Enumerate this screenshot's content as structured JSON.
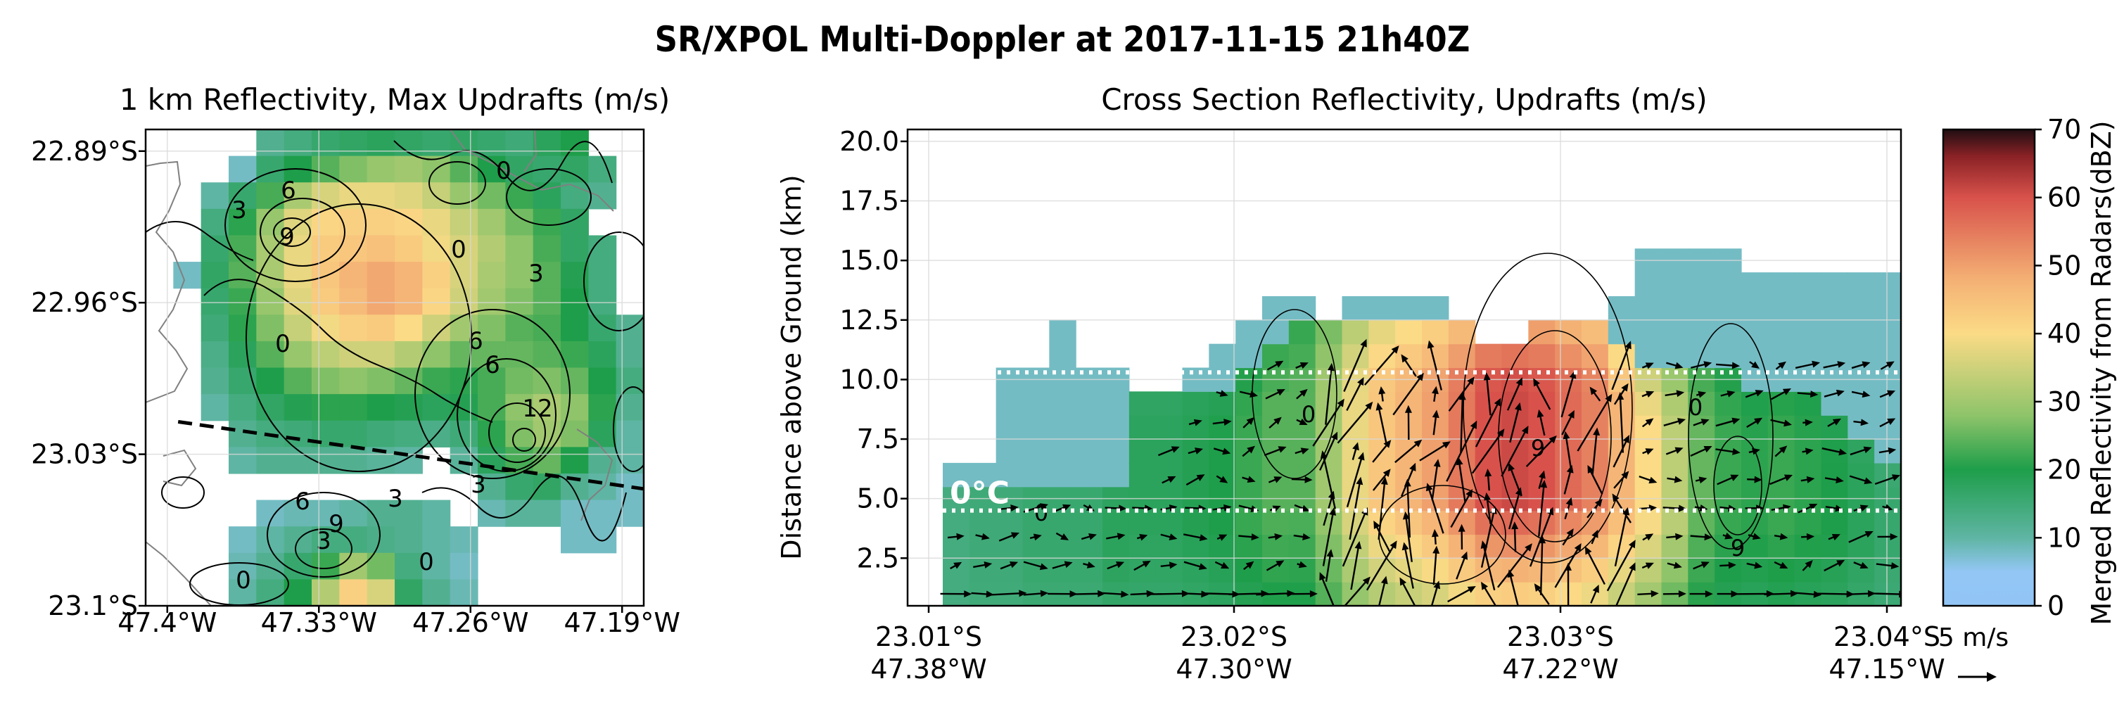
{
  "colors": {
    "cmap_stops": [
      "#92c5f6",
      "#93c6f5",
      "#5fb5a3",
      "#1e9e4a",
      "#8fc46a",
      "#fbdb86",
      "#f4b074",
      "#d8524b",
      "#8b2226",
      "#200e12"
    ],
    "cmap_stop_values": [
      0,
      5,
      10,
      20,
      28,
      40,
      48,
      60,
      66,
      70
    ],
    "contour": "#000000",
    "coast": "#808080",
    "grid": "#d9d9d9",
    "isotherm": "#ffffff",
    "section_line": "#000000"
  },
  "chart_data": [
    {
      "type": "heatmap",
      "title": "1 km Reflectivity, Max Updrafts (m/s)",
      "suptitle": "SR/XPOL Multi-Doppler at 2017-11-15 21h40Z",
      "xticks": [
        "47.4°W",
        "47.33°W",
        "47.26°W",
        "47.19°W"
      ],
      "yticks": [
        "22.89°S",
        "22.96°S",
        "23.03°S",
        "23.1°S"
      ],
      "xlim": [
        -47.41,
        -47.18
      ],
      "ylim": [
        -23.1,
        -22.88
      ],
      "grid": true,
      "reflectivity_units": "dBZ",
      "reflectivity_grid": [
        [
          0,
          0,
          0,
          0,
          12,
          14,
          16,
          17,
          18,
          17,
          16,
          17,
          16,
          15,
          18,
          20,
          0,
          0
        ],
        [
          0,
          0,
          0,
          8,
          16,
          20,
          24,
          27,
          29,
          30,
          28,
          24,
          20,
          17,
          16,
          17,
          14,
          0
        ],
        [
          0,
          0,
          10,
          16,
          23,
          31,
          36,
          38,
          38,
          37,
          34,
          29,
          26,
          22,
          18,
          14,
          12,
          0
        ],
        [
          0,
          0,
          14,
          21,
          29,
          37,
          41,
          42,
          42,
          41,
          38,
          34,
          30,
          26,
          22,
          17,
          0,
          0
        ],
        [
          0,
          0,
          16,
          23,
          31,
          38,
          43,
          44,
          45,
          43,
          39,
          36,
          32,
          28,
          23,
          17,
          14,
          0
        ],
        [
          0,
          8,
          17,
          24,
          31,
          38,
          44,
          47,
          49,
          47,
          42,
          36,
          31,
          28,
          24,
          19,
          14,
          0
        ],
        [
          0,
          0,
          16,
          22,
          29,
          37,
          43,
          46,
          49,
          47,
          41,
          35,
          30,
          27,
          24,
          20,
          14,
          0
        ],
        [
          0,
          0,
          15,
          21,
          27,
          34,
          39,
          42,
          43,
          40,
          35,
          30,
          27,
          24,
          23,
          20,
          16,
          12
        ],
        [
          0,
          0,
          13,
          18,
          24,
          29,
          33,
          35,
          35,
          32,
          28,
          25,
          25,
          25,
          24,
          22,
          18,
          12
        ],
        [
          0,
          0,
          12,
          16,
          20,
          24,
          27,
          28,
          27,
          25,
          22,
          21,
          23,
          26,
          27,
          25,
          20,
          14
        ],
        [
          0,
          0,
          10,
          14,
          17,
          19,
          21,
          21,
          20,
          19,
          18,
          19,
          23,
          28,
          31,
          28,
          21,
          12
        ],
        [
          0,
          0,
          0,
          12,
          14,
          15,
          16,
          16,
          15,
          14,
          13,
          15,
          21,
          27,
          30,
          27,
          18,
          10
        ],
        [
          0,
          0,
          0,
          10,
          12,
          12,
          12,
          12,
          11,
          10,
          0,
          11,
          18,
          23,
          25,
          20,
          12,
          10
        ],
        [
          0,
          0,
          0,
          0,
          0,
          0,
          0,
          0,
          0,
          0,
          0,
          0,
          12,
          16,
          17,
          12,
          10,
          8
        ],
        [
          0,
          0,
          0,
          0,
          8,
          9,
          9,
          10,
          12,
          12,
          10,
          0,
          9,
          11,
          11,
          8,
          8,
          8
        ],
        [
          0,
          0,
          0,
          8,
          10,
          12,
          14,
          14,
          13,
          12,
          10,
          9,
          0,
          0,
          0,
          8,
          8,
          0
        ],
        [
          0,
          0,
          0,
          9,
          12,
          16,
          22,
          30,
          26,
          14,
          10,
          8,
          0,
          0,
          0,
          0,
          0,
          0
        ],
        [
          0,
          0,
          0,
          10,
          14,
          20,
          32,
          42,
          36,
          17,
          12,
          9,
          0,
          0,
          0,
          0,
          0,
          0
        ]
      ],
      "contour_labels": [
        "0",
        "3",
        "6",
        "9",
        "12"
      ],
      "cross_section_line": {
        "start": [
          -47.395,
          -23.015
        ],
        "end": [
          -47.18,
          -23.046
        ]
      }
    },
    {
      "type": "heatmap",
      "title": "Cross Section Reflectivity, Updrafts (m/s)",
      "ylabel": "Distance above Ground (km)",
      "xticks": [
        "23.01°S\n47.38°W",
        "23.02°S\n47.30°W",
        "23.03°S\n47.22°W",
        "23.04°S\n47.15°W"
      ],
      "yticks": [
        "2.5",
        "5.0",
        "7.5",
        "10.0",
        "12.5",
        "15.0",
        "17.5",
        "20.0"
      ],
      "ylim": [
        0.5,
        20.5
      ],
      "grid": true,
      "isotherms": [
        {
          "label": "0°C",
          "height_km": 10.3
        },
        {
          "label": "0°C",
          "height_km": 4.5
        }
      ],
      "quiver_key": "5 m/s",
      "column_top_km": [
        6.5,
        6.5,
        10.5,
        10.5,
        12.5,
        10.5,
        10.5,
        9.5,
        9.5,
        10.5,
        11.5,
        12.5,
        13.5,
        13.5,
        12.5,
        13.5,
        13.5,
        13.5,
        13.5,
        12.5,
        11.5,
        11.5,
        12.5,
        12.5,
        12.5,
        13.5,
        15.5,
        15.5,
        15.5,
        15.5,
        14.5,
        14.5,
        14.5,
        14.5,
        14.5,
        14.5
      ],
      "column_rain_top_km": [
        5.5,
        5.5,
        5.5,
        5.5,
        5.5,
        5.5,
        5.5,
        9.5,
        9.5,
        9.5,
        9.5,
        10.5,
        11.5,
        12.5,
        12.5,
        12.5,
        12.5,
        12.5,
        12.5,
        12.5,
        12.5,
        12.5,
        12.5,
        12.5,
        12.5,
        11.5,
        10.5,
        10.5,
        10.5,
        10.5,
        9.5,
        9.5,
        9.5,
        8.5,
        7.5,
        6.5
      ],
      "column_core_dbz": [
        14,
        15,
        15,
        16,
        16,
        16,
        18,
        18,
        18,
        19,
        20,
        22,
        24,
        24,
        30,
        38,
        44,
        47,
        50,
        55,
        60,
        61,
        60,
        57,
        54,
        47,
        40,
        33,
        25,
        22,
        21,
        22,
        21,
        20,
        18,
        16
      ],
      "colorbar": {
        "label": "Merged Reflectivity from Radars(dBZ)",
        "ticks": [
          "0",
          "10",
          "20",
          "30",
          "40",
          "50",
          "60",
          "70"
        ],
        "range": [
          0,
          70
        ]
      }
    }
  ]
}
